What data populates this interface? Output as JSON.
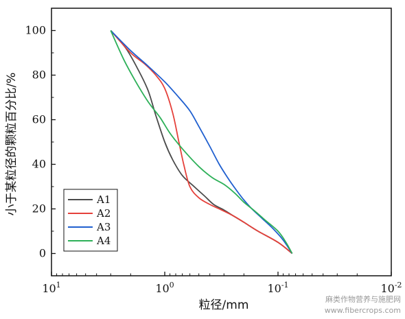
{
  "chart_data": {
    "type": "line",
    "x_scale": "log",
    "x_reversed": true,
    "xlim": [
      10,
      0.01
    ],
    "ylim": [
      -10,
      110
    ],
    "xlabel": "粒径/mm",
    "ylabel": "小于某粒径的颗粒百分比/%",
    "x_ticks": [
      {
        "value": 10,
        "base": "10",
        "exp": "1"
      },
      {
        "value": 1,
        "base": "10",
        "exp": "0"
      },
      {
        "value": 0.1,
        "base": "10",
        "exp": "-1"
      },
      {
        "value": 0.01,
        "base": "10",
        "exp": "-2"
      }
    ],
    "y_ticks": [
      0,
      20,
      40,
      60,
      80,
      100
    ],
    "legend_position": "bottom-left",
    "grid": false,
    "series": [
      {
        "name": "A1",
        "color": "#4a4a4a",
        "x": [
          3.0,
          2.2,
          1.7,
          1.4,
          1.2,
          1.0,
          0.85,
          0.7,
          0.55,
          0.45,
          0.37,
          0.3,
          0.25,
          0.2,
          0.15,
          0.1,
          0.075
        ],
        "y": [
          100,
          92,
          82,
          73,
          62,
          50,
          42,
          35,
          30,
          26,
          22,
          19.5,
          17,
          14,
          10,
          5,
          0
        ]
      },
      {
        "name": "A2",
        "color": "#e5403a",
        "x": [
          3.0,
          2.0,
          1.5,
          1.2,
          1.0,
          0.85,
          0.75,
          0.68,
          0.6,
          0.5,
          0.4,
          0.33,
          0.25,
          0.2,
          0.15,
          0.1,
          0.075
        ],
        "y": [
          100,
          90,
          85,
          80,
          74,
          63,
          50,
          40,
          30,
          25,
          22,
          20,
          17,
          14,
          10,
          5,
          0
        ]
      },
      {
        "name": "A3",
        "color": "#1f5fcf",
        "x": [
          3.0,
          2.0,
          1.4,
          1.0,
          0.75,
          0.6,
          0.5,
          0.4,
          0.33,
          0.27,
          0.23,
          0.2,
          0.17,
          0.14,
          0.11,
          0.09,
          0.075
        ],
        "y": [
          100,
          91,
          84,
          77,
          70,
          64,
          57,
          48,
          40,
          33,
          28,
          24,
          20,
          16,
          11,
          6,
          0
        ]
      },
      {
        "name": "A4",
        "color": "#2db058",
        "x": [
          3.0,
          2.3,
          1.8,
          1.4,
          1.1,
          0.9,
          0.7,
          0.5,
          0.38,
          0.3,
          0.24,
          0.2,
          0.16,
          0.13,
          0.1,
          0.085,
          0.075
        ],
        "y": [
          100,
          87,
          77,
          68,
          61,
          54,
          47,
          39,
          34,
          31,
          27,
          23,
          19,
          15,
          10,
          5,
          0
        ]
      }
    ]
  },
  "watermark": {
    "line1": "麻类作物营养与施肥网",
    "line2": "www.fibercrops.com"
  }
}
